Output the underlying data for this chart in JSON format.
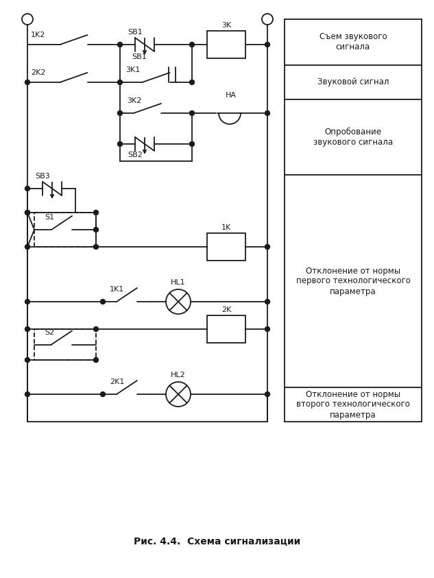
{
  "bg_color": "#ffffff",
  "line_color": "#1a1a1a",
  "lw": 1.3,
  "title": "Рис. 4.4.  Схема сигнализации",
  "title_fs": 10,
  "panel_texts": [
    "Съем звукового\nсигнала",
    "Звуковой сигнал",
    "Опробование\nзвукового сигнала",
    "Отклонение от нормы\nпервого технологического\nпараметра",
    "Отклонение от нормы\nвторого технологического\nпараметра"
  ]
}
